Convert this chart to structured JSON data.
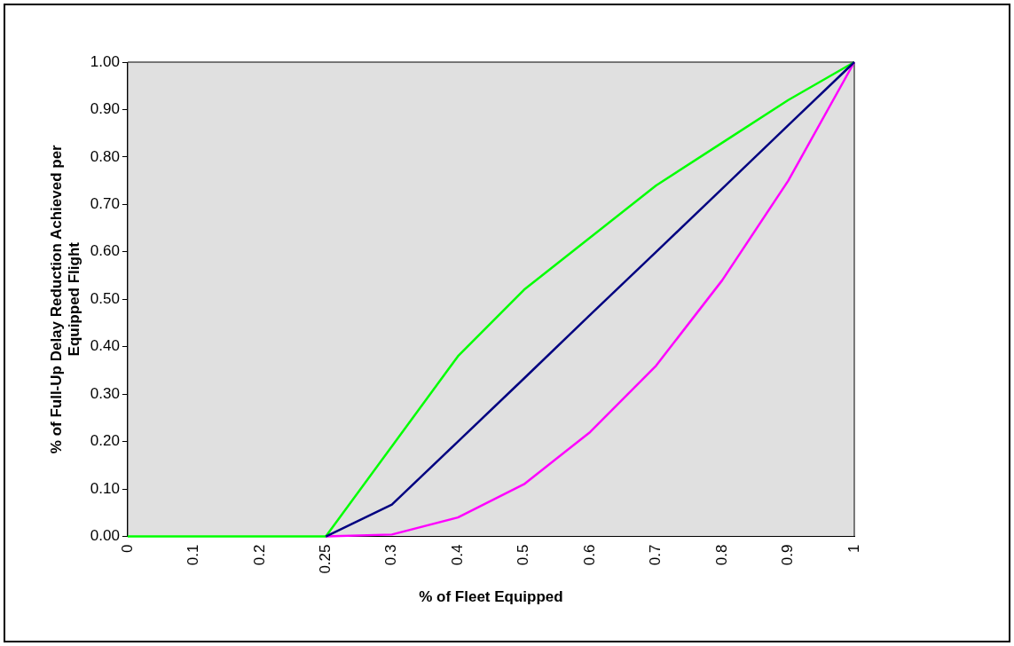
{
  "chart_data": {
    "type": "line",
    "xlabel": "% of Fleet Equipped",
    "ylabel": "% of Full-Up Delay Reduction Achieved per Equipped Flight",
    "categories": [
      "0",
      "0.1",
      "0.2",
      "0.25",
      "0.3",
      "0.4",
      "0.5",
      "0.6",
      "0.7",
      "0.8",
      "0.9",
      "1"
    ],
    "series": [
      {
        "color": "#000080",
        "values": [
          null,
          null,
          null,
          0,
          0.067,
          0.2,
          0.333,
          0.467,
          0.6,
          0.733,
          0.867,
          1.0
        ]
      },
      {
        "color": "#ff00ff",
        "values": [
          null,
          null,
          null,
          0,
          0.004,
          0.04,
          0.11,
          0.22,
          0.36,
          0.54,
          0.75,
          1.0
        ]
      },
      {
        "color": "#00ff00",
        "values": [
          0,
          0,
          0,
          0,
          0.19,
          0.38,
          0.52,
          0.63,
          0.74,
          0.83,
          0.92,
          1.0
        ]
      }
    ],
    "ylim": [
      0,
      1
    ],
    "yticks": [
      {
        "value": 0,
        "label": "0.00"
      },
      {
        "value": 0.1,
        "label": "0.10"
      },
      {
        "value": 0.2,
        "label": "0.20"
      },
      {
        "value": 0.3,
        "label": "0.30"
      },
      {
        "value": 0.4,
        "label": "0.40"
      },
      {
        "value": 0.5,
        "label": "0.50"
      },
      {
        "value": 0.6,
        "label": "0.60"
      },
      {
        "value": 0.7,
        "label": "0.70"
      },
      {
        "value": 0.8,
        "label": "0.80"
      },
      {
        "value": 0.9,
        "label": "0.90"
      },
      {
        "value": 1,
        "label": "1.00"
      }
    ],
    "grid": false,
    "legend": false,
    "marker": "none",
    "line_style": "solid"
  }
}
